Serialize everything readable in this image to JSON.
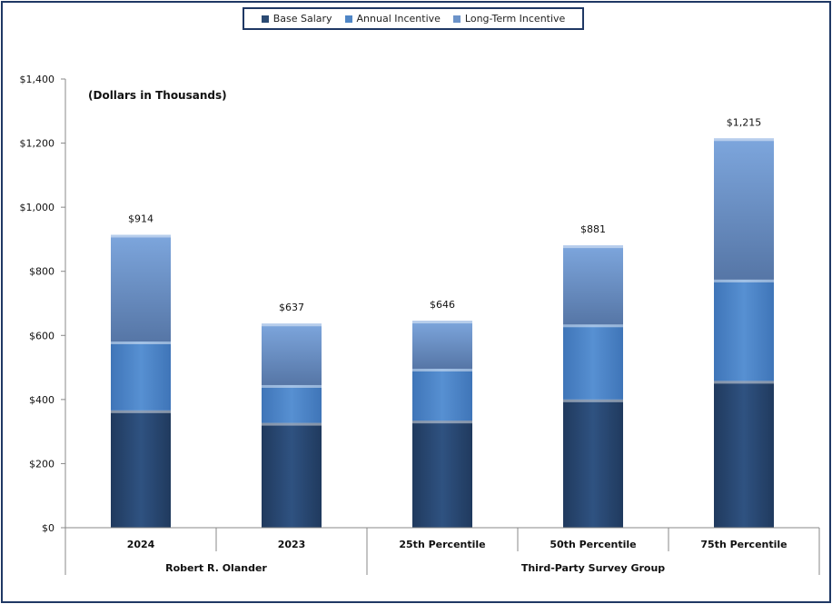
{
  "chart_data": {
    "type": "bar",
    "stacked": true,
    "subtitle": "(Dollars in Thousands)",
    "categories": [
      "2024",
      "2023",
      "25th Percentile",
      "50th Percentile",
      "75th Percentile"
    ],
    "groups": [
      {
        "label": "Robert R. Olander",
        "span": [
          0,
          1
        ]
      },
      {
        "label": "Third-Party Survey Group",
        "span": [
          2,
          4
        ]
      }
    ],
    "series": [
      {
        "name": "Base Salary",
        "color": "#2b4a73",
        "values": [
          366,
          327,
          334,
          400,
          458
        ]
      },
      {
        "name": "Annual Incentive",
        "color": "#4f86c6",
        "values": [
          215,
          118,
          162,
          234,
          316
        ]
      },
      {
        "name": "Long-Term Incentive",
        "color": "#6c93c9",
        "values": [
          333,
          192,
          150,
          247,
          441
        ]
      }
    ],
    "totals": [
      914,
      637,
      646,
      881,
      1215
    ],
    "total_labels": [
      "$914",
      "$637",
      "$646",
      "$881",
      "$1,215"
    ],
    "ylim": [
      0,
      1400
    ],
    "yticks": [
      0,
      200,
      400,
      600,
      800,
      1000,
      1200,
      1400
    ],
    "ytick_labels": [
      "$0",
      "$200",
      "$400",
      "$600",
      "$800",
      "$1,000",
      "$1,200",
      "$1,400"
    ],
    "legend_position": "top-center",
    "grid": false
  }
}
